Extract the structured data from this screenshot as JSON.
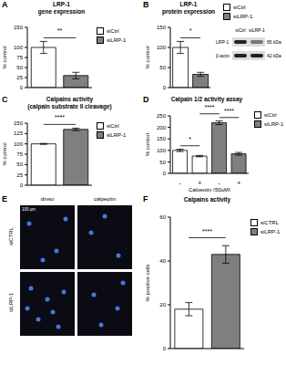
{
  "chart_data": [
    {
      "panel": "A",
      "type": "bar",
      "title": "LRP-1\ngene expression",
      "y_label": "% control",
      "categories": [
        null,
        null
      ],
      "series": [
        {
          "name": "siCtrl",
          "color": "#ffffff",
          "values": [
            100,
            null
          ],
          "errors": [
            15,
            null
          ]
        },
        {
          "name": "siLRP-1",
          "color": "#7f7f7f",
          "values": [
            null,
            30
          ],
          "errors": [
            null,
            8
          ]
        }
      ],
      "ylim": [
        0,
        150
      ],
      "yticks": [
        0,
        25,
        50,
        75,
        100,
        125,
        150
      ],
      "annotations": [
        {
          "text": "**",
          "between": [
            0,
            1
          ]
        }
      ]
    },
    {
      "panel": "B",
      "type": "bar",
      "title": "LRP-1\nprotein expression",
      "y_label": "% control",
      "categories": [
        null,
        null
      ],
      "series": [
        {
          "name": "siCtrl",
          "color": "#ffffff",
          "values": [
            100,
            null
          ],
          "errors": [
            15,
            null
          ]
        },
        {
          "name": "siLRP-1",
          "color": "#7f7f7f",
          "values": [
            null,
            33
          ],
          "errors": [
            null,
            5
          ]
        }
      ],
      "ylim": [
        0,
        150
      ],
      "yticks": [
        0,
        50,
        100,
        150
      ],
      "annotations": [
        {
          "text": "*",
          "between": [
            0,
            1
          ]
        }
      ],
      "blot": {
        "lanes": [
          "siCtrl",
          "siLRP-1"
        ],
        "rows": [
          {
            "protein": "LRP-1",
            "size": "85 kDa"
          },
          {
            "protein": "β-actin",
            "size": "42 kDa"
          }
        ]
      }
    },
    {
      "panel": "C",
      "type": "bar",
      "title": "Calpains activity\n(calpain substrate II cleavage)",
      "y_label": "% control",
      "categories": [
        null,
        null
      ],
      "series": [
        {
          "name": "siCtrl",
          "color": "#ffffff",
          "values": [
            100,
            null
          ],
          "errors": [
            1,
            null
          ]
        },
        {
          "name": "siLRP-1",
          "color": "#7f7f7f",
          "values": [
            null,
            135
          ],
          "errors": [
            null,
            3
          ]
        }
      ],
      "ylim": [
        0,
        150
      ],
      "yticks": [
        0,
        25,
        50,
        75,
        100,
        125,
        150
      ],
      "annotations": [
        {
          "text": "****",
          "between": [
            0,
            1
          ]
        }
      ]
    },
    {
      "panel": "D",
      "type": "bar",
      "title": "Calpain 1/2 activity assay",
      "y_label": "% control",
      "x_label": "Calpeptin (50µM)",
      "categories": [
        "-",
        "+",
        "-",
        "+"
      ],
      "series": [
        {
          "name": "siCtrl",
          "color": "#ffffff",
          "values": [
            100,
            75,
            null,
            null
          ],
          "errors": [
            5,
            3,
            null,
            null
          ]
        },
        {
          "name": "siLRP-1",
          "color": "#7f7f7f",
          "values": [
            null,
            null,
            220,
            85
          ],
          "errors": [
            null,
            null,
            8,
            6
          ]
        }
      ],
      "ylim": [
        0,
        250
      ],
      "yticks": [
        0,
        50,
        100,
        150,
        200,
        250
      ],
      "annotations": [
        {
          "text": "*",
          "between": [
            0,
            1
          ]
        },
        {
          "text": "****",
          "between": [
            2,
            3
          ]
        },
        {
          "text": "****",
          "between": [
            1,
            2
          ]
        }
      ]
    },
    {
      "panel": "F",
      "type": "bar",
      "title": "Calpains activity",
      "y_label": "% positive cells",
      "categories": [
        null,
        null
      ],
      "series": [
        {
          "name": "siCTRL",
          "color": "#ffffff",
          "values": [
            18,
            null
          ],
          "errors": [
            3,
            null
          ]
        },
        {
          "name": "siLRP-1",
          "color": "#7f7f7f",
          "values": [
            null,
            43
          ],
          "errors": [
            null,
            4
          ]
        }
      ],
      "ylim": [
        0,
        60
      ],
      "yticks": [
        0,
        20,
        40,
        60
      ],
      "annotations": [
        {
          "text": "****",
          "between": [
            0,
            1
          ]
        }
      ]
    }
  ],
  "image_panel": {
    "panel": "E",
    "columns": [
      "dmso",
      "calpeptin"
    ],
    "rows": [
      "siCTRL",
      "siLRP-1"
    ],
    "scale_bar": "100 µm"
  }
}
